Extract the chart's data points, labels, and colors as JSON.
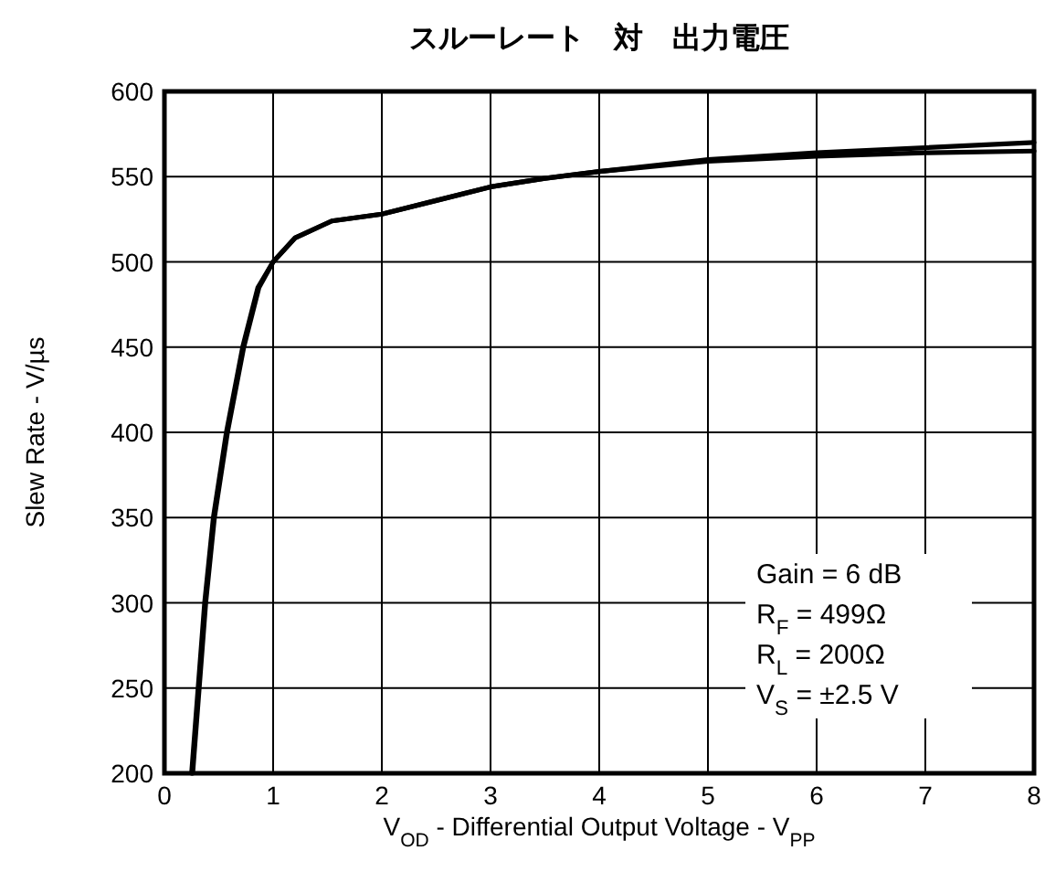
{
  "chart_data": {
    "type": "line",
    "title": "スルーレート　対　出力電圧",
    "xlabel": "V$_{OD}$ - Differential Output Voltage - V$_{PP}$",
    "ylabel": "Slew Rate - V/µs",
    "xlim": [
      0,
      8
    ],
    "ylim": [
      200,
      600
    ],
    "xticks": [
      0,
      1,
      2,
      3,
      4,
      5,
      6,
      7,
      8
    ],
    "yticks": [
      200,
      250,
      300,
      350,
      400,
      450,
      500,
      550,
      600
    ],
    "grid": true,
    "marker": "none",
    "line_style": "solid",
    "series": [
      {
        "color": "#000000",
        "x": [
          0.26,
          0.32,
          0.38,
          0.46,
          0.58,
          0.73,
          0.87,
          1.0,
          1.2,
          1.54,
          2,
          2.5,
          3,
          3.5,
          4,
          5,
          6,
          7,
          8
        ],
        "values": [
          200,
          250,
          300,
          350,
          400,
          450,
          485,
          500,
          514,
          524,
          528,
          536,
          544,
          549,
          553,
          560,
          564,
          567,
          570
        ]
      },
      {
        "color": "#000000",
        "x": [
          0.25,
          0.31,
          0.37,
          0.45,
          0.57,
          0.72,
          0.86,
          1.0,
          1.2,
          1.54,
          2,
          2.5,
          3,
          3.5,
          4,
          5,
          6,
          7,
          8
        ],
        "values": [
          200,
          250,
          300,
          350,
          400,
          450,
          485,
          500,
          514,
          524,
          528,
          536,
          544,
          549,
          553,
          559,
          562,
          564,
          565
        ]
      }
    ],
    "annotations": [
      "Gain = 6 dB",
      "R$_{F}$ = 499Ω",
      "R$_{L}$ = 200Ω",
      "V$_{S}$ = ±2.5 V"
    ]
  }
}
